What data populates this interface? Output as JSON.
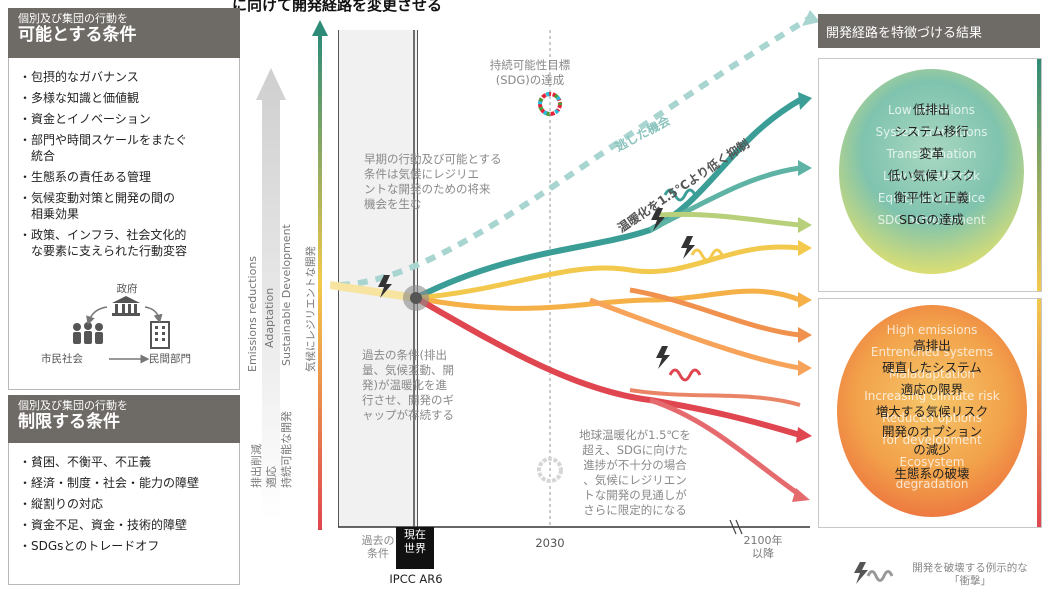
{
  "top_title": "に向けて開発経路を変更させる",
  "enabling": {
    "subtitle": "個別及び集団の行動を",
    "title": "可能とする条件",
    "items": [
      "・包摂的なガバナンス",
      "・多様な知識と価値観",
      "・資金とイノベーション",
      "・部門や時間スケールをまたぐ\n　統合",
      "・生態系の責任ある管理",
      "・気候変動対策と開発の間の\n　相乗効果",
      "・政策、インフラ、社会文化的\n　な要素に支えられた行動変容"
    ],
    "actors": {
      "government": "政府",
      "civil_society": "市民社会",
      "private_sector": "民間部門"
    }
  },
  "constraining": {
    "subtitle": "個別及び集団の行動を",
    "title": "制限する条件",
    "items": [
      "・貧困、不衡平、不正義",
      "・経済・制度・社会・能力の障壁",
      "・縦割りの対応",
      "・資金不足、資金・技術的障壁",
      "・SDGsとのトレードオフ"
    ]
  },
  "arrow_labels": {
    "en": [
      "Emissions reductions",
      "Adaptation",
      "Sustainable Development"
    ],
    "jp_upper": "気候にレジリエントな開発",
    "jp_lower": [
      "排出削減",
      "適応",
      "持続可能な開発"
    ]
  },
  "diagram": {
    "sdg_goal": "持続可能性目標\n(SDG)の達成",
    "missed_opportunity": "逃した機会",
    "limit_warming": "温暖化を1.5℃より低く抑制",
    "early_action": "早期の行動及び可能とする\n条件は気候にレジリエ\nントな開発のための将来\n機会を生む",
    "past_conditions_text": "過去の条件(排出\n量、気候変動、開\n発)が温暖化を進\n行させ、開発のギ\nャップが存続する",
    "warming_text": "地球温暖化が1.5℃を\n超え、SDGに向けた\n進捗が不十分の場合\n、気候にレジリエン\nトな開発の見通しが\nさらに限定的になる"
  },
  "axis": {
    "past": "過去の\n条件",
    "now": "現在\n世界",
    "ipcc": "IPCC AR6",
    "year2030": "2030",
    "year2100": "2100年\n以降"
  },
  "outcomes": {
    "header": "開発経路を特徴づける結果",
    "positive_bg": [
      "Low emissions",
      "System transitions",
      "Transformation",
      "Low climate risk",
      "Equity and justice",
      "SDG achievement"
    ],
    "positive_items": [
      "低排出",
      "システム移行",
      "変革",
      "低い気候リスク",
      "衡平性と正義",
      "SDGの達成"
    ],
    "negative_bg": [
      "High emissions",
      "Entrenched systems",
      "Maladaptation",
      "Increasing climate risk",
      "Reduced options",
      "for development",
      "Ecosystem",
      "degradation"
    ],
    "negative_items": [
      "高排出",
      "硬直したシステム",
      "適応の限界",
      "増大する気候リスク",
      "開発のオプション\nの減少",
      "生態系の破壊"
    ]
  },
  "legend": {
    "shock": "開発を破壊する例示的な\n「衝撃」"
  },
  "colors": {
    "header_gray": "#6e6a66",
    "teal": "#3a9d96",
    "yellow": "#f2c94c",
    "orange": "#f0914e",
    "red": "#e0464f",
    "green_arrow": "#2e8b78"
  }
}
